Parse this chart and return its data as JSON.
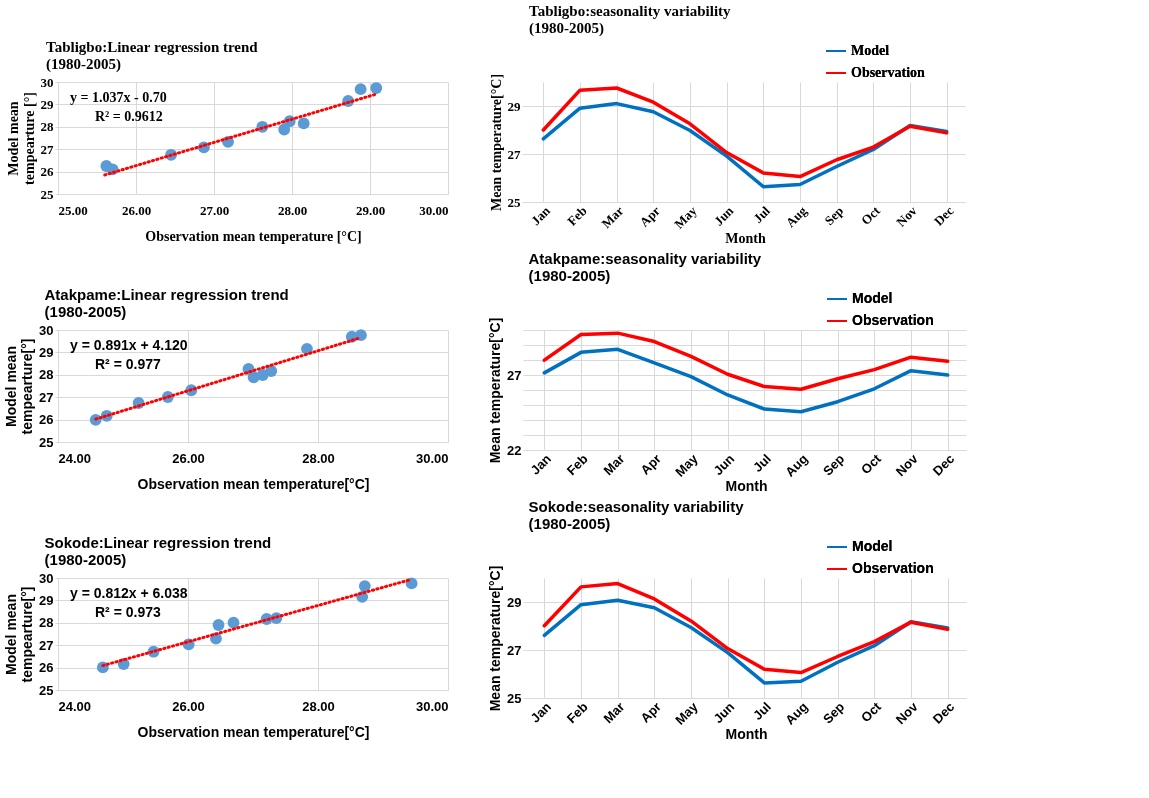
{
  "chart_data": [
    {
      "type": "scatter",
      "title": "Tabligbo:Linear regression trend\n(1980-2005)",
      "xlabel": "Observation mean temperature [°C]",
      "ylabel": "Model mean\ntempearture [°]",
      "xlim": [
        25,
        30
      ],
      "xticks": [
        {
          "value": 25,
          "label": "25.00"
        },
        {
          "value": 26,
          "label": "26.00"
        },
        {
          "value": 27,
          "label": "27.00"
        },
        {
          "value": 28,
          "label": "28.00"
        },
        {
          "value": 29,
          "label": "29.00"
        },
        {
          "value": 30,
          "label": "30.00"
        }
      ],
      "ylim": [
        25,
        30
      ],
      "yticks": [
        25,
        26,
        27,
        28,
        29,
        30
      ],
      "grid": true,
      "legend": false,
      "annotations": [
        "y = 1.037x - 0.70",
        "R² = 0.9612"
      ],
      "series": [
        {
          "type": "scatter",
          "color": "#5b9bd5",
          "marker": "circle",
          "x": [
            25.62,
            25.7,
            26.45,
            26.87,
            27.18,
            27.62,
            27.9,
            27.97,
            28.15,
            28.72,
            28.88,
            29.08
          ],
          "values": [
            26.25,
            26.1,
            26.75,
            27.08,
            27.33,
            28.0,
            27.88,
            28.25,
            28.15,
            29.15,
            29.68,
            29.73
          ]
        },
        {
          "type": "line",
          "color": "#ff0000",
          "line_style": "dotted",
          "marker": "none",
          "x": [
            25.6,
            29.1
          ],
          "values": [
            25.85,
            29.48
          ]
        }
      ]
    },
    {
      "type": "line",
      "title": "Tabligbo:seasonality variability\n(1980-2005)",
      "xlabel": "Month",
      "ylabel": "Mean temperature[°C]",
      "categories": [
        "Jan",
        "Feb",
        "Mar",
        "Apr",
        "May",
        "Jun",
        "Jul",
        "Aug",
        "Sep",
        "Oct",
        "Nov",
        "Dec"
      ],
      "ylim": [
        25,
        30
      ],
      "yticks": [
        25,
        27,
        29
      ],
      "grid": true,
      "legend": "top right",
      "marker": "none",
      "line_style": "solid",
      "series": [
        {
          "name": "Model",
          "color": "#0070c0",
          "values": [
            27.63,
            28.91,
            29.1,
            28.76,
            27.98,
            26.91,
            25.64,
            25.73,
            26.48,
            27.19,
            28.19,
            27.94
          ]
        },
        {
          "name": "Observation",
          "color": "#ff0000",
          "values": [
            28.0,
            29.66,
            29.75,
            29.16,
            28.26,
            27.06,
            26.21,
            26.06,
            26.76,
            27.29,
            28.16,
            27.88
          ]
        }
      ]
    },
    {
      "type": "scatter",
      "title": "Atakpame:Linear regression trend\n(1980-2005)",
      "xlabel": "Observation mean temperature[°C]",
      "ylabel": "Model mean\ntempearture[°]",
      "xlim": [
        24,
        30
      ],
      "xticks": [
        {
          "value": 24,
          "label": "24.00"
        },
        {
          "value": 26,
          "label": "26.00"
        },
        {
          "value": 28,
          "label": "28.00"
        },
        {
          "value": 30,
          "label": "30.00"
        }
      ],
      "ylim": [
        25,
        30
      ],
      "yticks": [
        25,
        26,
        27,
        28,
        29,
        30
      ],
      "grid": true,
      "legend": false,
      "annotations": [
        "y = 0.891x + 4.120",
        "R² = 0.977"
      ],
      "series": [
        {
          "type": "scatter",
          "color": "#5b9bd5",
          "marker": "circle",
          "x": [
            24.58,
            24.75,
            25.24,
            25.69,
            26.05,
            26.93,
            27.01,
            27.15,
            27.28,
            27.83,
            28.52,
            28.66
          ],
          "values": [
            25.99,
            26.17,
            26.74,
            27.01,
            27.31,
            28.26,
            27.89,
            27.99,
            28.17,
            29.16,
            29.7,
            29.77
          ]
        },
        {
          "type": "line",
          "color": "#ff0000",
          "line_style": "dotted",
          "marker": "none",
          "x": [
            24.58,
            28.66
          ],
          "values": [
            26.02,
            29.66
          ]
        }
      ]
    },
    {
      "type": "line",
      "title": "Atakpame:seasonality variability\n(1980-2005)",
      "xlabel": "Month",
      "ylabel": "Mean temperature[°C]",
      "categories": [
        "Jan",
        "Feb",
        "Mar",
        "Apr",
        "May",
        "Jun",
        "Jul",
        "Aug",
        "Sep",
        "Oct",
        "Nov",
        "Dec"
      ],
      "ylim": [
        22,
        30
      ],
      "yticks": [
        22,
        {
          "value": 23,
          "label": null
        },
        {
          "value": 24,
          "label": null
        },
        {
          "value": 25,
          "label": null
        },
        {
          "value": 26,
          "label": null
        },
        27,
        {
          "value": 28,
          "label": null
        },
        {
          "value": 29,
          "label": null
        },
        {
          "value": 30,
          "label": null
        }
      ],
      "grid": true,
      "legend": "top right",
      "marker": "none",
      "line_style": "solid",
      "series": [
        {
          "name": "Model",
          "color": "#0070c0",
          "values": [
            27.14,
            28.51,
            28.71,
            27.81,
            26.89,
            25.67,
            24.73,
            24.55,
            25.22,
            26.08,
            27.29,
            27.0
          ]
        },
        {
          "name": "Observation",
          "color": "#ff0000",
          "values": [
            27.99,
            29.7,
            29.79,
            29.23,
            28.24,
            27.05,
            26.23,
            26.05,
            26.75,
            27.36,
            28.19,
            27.92
          ]
        }
      ]
    },
    {
      "type": "scatter",
      "title": "Sokode:Linear regression trend\n(1980-2005)",
      "xlabel": "Observation mean temperature[°C]",
      "ylabel": "Model mean\ntempearture[°]",
      "xlim": [
        24,
        30
      ],
      "xticks": [
        {
          "value": 24,
          "label": "24.00"
        },
        {
          "value": 26,
          "label": "26.00"
        },
        {
          "value": 28,
          "label": "28.00"
        },
        {
          "value": 30,
          "label": "30.00"
        }
      ],
      "ylim": [
        25,
        30
      ],
      "yticks": [
        25,
        26,
        27,
        28,
        29,
        30
      ],
      "grid": true,
      "legend": false,
      "annotations": [
        "y = 0.812x + 6.038",
        "R² = 0.973"
      ],
      "series": [
        {
          "type": "scatter",
          "color": "#5b9bd5",
          "marker": "circle",
          "x": [
            24.69,
            25.01,
            25.47,
            26.01,
            26.43,
            26.47,
            26.7,
            27.21,
            27.36,
            28.68,
            28.72,
            29.44
          ],
          "values": [
            26.01,
            26.16,
            26.71,
            27.04,
            27.3,
            27.9,
            28.01,
            28.17,
            28.21,
            29.16,
            29.64,
            29.76
          ]
        },
        {
          "type": "line",
          "color": "#ff0000",
          "line_style": "dotted",
          "marker": "none",
          "x": [
            24.69,
            29.44
          ],
          "values": [
            26.09,
            29.94
          ]
        }
      ]
    },
    {
      "type": "line",
      "title": "Sokode:seasonality variability\n(1980-2005)",
      "xlabel": "Month",
      "ylabel": "Mean temperature[°C]",
      "categories": [
        "Jan",
        "Feb",
        "Mar",
        "Apr",
        "May",
        "Jun",
        "Jul",
        "Aug",
        "Sep",
        "Oct",
        "Nov",
        "Dec"
      ],
      "ylim": [
        25,
        30
      ],
      "yticks": [
        25,
        27,
        29
      ],
      "grid": true,
      "legend": "top right",
      "marker": "none",
      "line_style": "solid",
      "series": [
        {
          "name": "Model",
          "color": "#0070c0",
          "values": [
            27.61,
            28.89,
            29.07,
            28.76,
            27.94,
            26.89,
            25.63,
            25.7,
            26.49,
            27.18,
            28.18,
            27.92
          ]
        },
        {
          "name": "Observation",
          "color": "#ff0000",
          "values": [
            28.01,
            29.63,
            29.77,
            29.13,
            28.21,
            27.06,
            26.2,
            26.06,
            26.73,
            27.35,
            28.16,
            27.86
          ]
        }
      ]
    }
  ]
}
